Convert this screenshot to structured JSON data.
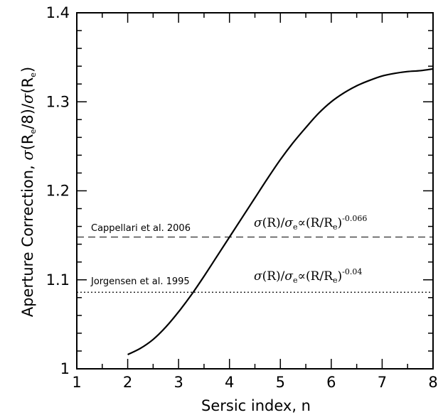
{
  "chart_data": {
    "type": "line",
    "xlabel": "Sersic index, n",
    "ylabel": {
      "prefix": "Aperture Correction, ",
      "sigma": "σ",
      "open1": "(R",
      "sub1": "e",
      "mid": "/8)/",
      "sigma2": "σ",
      "open2": "(R",
      "sub2": "e",
      "close": ")"
    },
    "xlim": [
      1,
      8
    ],
    "ylim": [
      1.0,
      1.4
    ],
    "x_ticks": [
      "1",
      "2",
      "3",
      "4",
      "5",
      "6",
      "7",
      "8"
    ],
    "y_ticks": [
      "1",
      "1.1",
      "1.2",
      "1.3",
      "1.4"
    ],
    "x_tick_values": [
      1,
      2,
      3,
      4,
      5,
      6,
      7,
      8
    ],
    "y_tick_values": [
      1.0,
      1.1,
      1.2,
      1.3,
      1.4
    ],
    "grid": false,
    "series": [
      {
        "style": "solid",
        "x": [
          2.0,
          2.25,
          2.5,
          2.75,
          3.0,
          3.25,
          3.5,
          3.75,
          4.0,
          4.25,
          4.5,
          4.75,
          5.0,
          5.25,
          5.5,
          5.75,
          6.0,
          6.25,
          6.5,
          6.75,
          7.0,
          7.25,
          7.5,
          7.75,
          8.0
        ],
        "y": [
          1.016,
          1.023,
          1.033,
          1.047,
          1.064,
          1.083,
          1.104,
          1.126,
          1.148,
          1.17,
          1.192,
          1.214,
          1.235,
          1.254,
          1.271,
          1.287,
          1.3,
          1.31,
          1.318,
          1.324,
          1.329,
          1.332,
          1.334,
          1.335,
          1.337
        ]
      }
    ],
    "reference_lines": [
      {
        "label": "Cappellari et al. 2006",
        "y": 1.148,
        "style": "dashed",
        "formula": {
          "s1": "σ",
          "r1": "(R)/",
          "s2": "σ",
          "sub": "e",
          "prop": "∝",
          "r2": "(R/R",
          "sub2": "e",
          "r3": ")",
          "exp": "-0.066"
        }
      },
      {
        "label": "Jorgensen et al. 1995",
        "y": 1.086,
        "style": "dotted",
        "formula": {
          "s1": "σ",
          "r1": "(R)/",
          "s2": "σ",
          "sub": "e",
          "prop": "∝",
          "r2": "(R/R",
          "sub2": "e",
          "r3": ")",
          "exp": "-0.04"
        }
      }
    ]
  }
}
